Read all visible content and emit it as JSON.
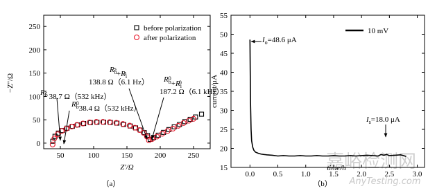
{
  "chart_data": [
    {
      "type": "scatter",
      "x_label": "Z'/Ω",
      "y_label": "−Z''/Ω",
      "caption": "（a）",
      "xlim": [
        25,
        275
      ],
      "ylim": [
        -12,
        274
      ],
      "xticks": [
        50,
        100,
        150,
        200,
        250
      ],
      "yticks": [
        0,
        50,
        100,
        150,
        200,
        250
      ],
      "legend": "upper right",
      "series": [
        {
          "name": "before polarization",
          "color": "#000000",
          "marker": "square",
          "x": [
            38.7,
            42,
            47,
            53,
            60,
            68,
            76,
            85,
            95,
            105,
            115,
            125,
            135,
            145,
            155,
            163,
            170,
            176,
            181,
            185,
            190,
            197,
            205,
            213,
            221,
            229,
            237,
            245,
            253,
            262
          ],
          "values": [
            4,
            14.6,
            21.5,
            27,
            32,
            36,
            39,
            42,
            44,
            44.8,
            45,
            44.3,
            42.8,
            40,
            36.6,
            32.6,
            28,
            22.6,
            16.3,
            8,
            12,
            17,
            23,
            29,
            35,
            40,
            46,
            51,
            56,
            62
          ]
        },
        {
          "name": "after polarization",
          "color": "#e8192c",
          "marker": "circle",
          "x": [
            38.4,
            41,
            46,
            52,
            59,
            67,
            75,
            84,
            94,
            104,
            114,
            124,
            134,
            144,
            154,
            162,
            169,
            175,
            180,
            183,
            188,
            195,
            203,
            211,
            219,
            227,
            235,
            243,
            250
          ],
          "values": [
            -3,
            10,
            19,
            26,
            31,
            35.5,
            39,
            42,
            44.5,
            45.5,
            45.5,
            45,
            43.5,
            41,
            37.5,
            33,
            28,
            22,
            14,
            6,
            9,
            14,
            20,
            26,
            31,
            37,
            43,
            48,
            52
          ]
        }
      ],
      "annotations": [
        {
          "lines": [
            [
              {
                "base": "R",
                "sub": "b",
                "sup": "s"
              },
              {
                "text": " 38.7 Ω（532 kHz）"
              }
            ]
          ]
        },
        {
          "lines": [
            [
              {
                "base": "R",
                "sub": "b",
                "sup": "0"
              },
              {
                "text": "38.4 Ω（532 kHz）"
              }
            ]
          ]
        },
        {
          "lines": [
            [
              {
                "base": "R",
                "sub": "b",
                "sup": "s"
              },
              {
                "text": "+"
              },
              {
                "base": "R",
                "sub": "i",
                "sup": "s"
              }
            ],
            [
              {
                "text": "138.8 Ω（6.1 Hz）"
              }
            ]
          ]
        },
        {
          "lines": [
            [
              {
                "base": "R",
                "sub": "b",
                "sup": "0"
              },
              {
                "text": "+"
              },
              {
                "base": "R",
                "sub": "i",
                "sup": "0"
              }
            ],
            [
              {
                "text": "187.2 Ω（6.1 kHz）"
              }
            ]
          ]
        }
      ]
    },
    {
      "type": "line",
      "x_label": "time/h",
      "y_label": "current/μA",
      "caption": "（b）",
      "xlim": [
        -0.34,
        3.13
      ],
      "ylim": [
        15,
        55
      ],
      "xticks": [
        {
          "value": 0,
          "label": "0.0"
        },
        0.5,
        {
          "value": 1,
          "label": "1.0"
        },
        1.5,
        {
          "value": 2,
          "label": "2.0"
        },
        2.5,
        {
          "value": 3,
          "label": "3.0"
        }
      ],
      "yticks": [
        15,
        20,
        25,
        30,
        35,
        40,
        45,
        50,
        55
      ],
      "legend": "upper right",
      "x": [
        0,
        0.005,
        0.01,
        0.02,
        0.03,
        0.05,
        0.07,
        0.1,
        0.15,
        0.2,
        0.3,
        0.4,
        0.5,
        0.6,
        0.7,
        0.8,
        0.9,
        1.0,
        1.1,
        1.2,
        1.3,
        1.4,
        1.5,
        1.6,
        1.7,
        1.8,
        1.9,
        2.0,
        2.1,
        2.2,
        2.3,
        2.35,
        2.4,
        2.45,
        2.5,
        2.6,
        2.7,
        2.8
      ],
      "series": [
        {
          "name": "10 mV",
          "color": "#000000",
          "values": [
            48.6,
            40,
            32,
            25,
            22,
            20.3,
            19.5,
            19.0,
            18.7,
            18.5,
            18.3,
            18.2,
            18.0,
            18.1,
            18.0,
            18.0,
            18.1,
            18.0,
            18.0,
            18.1,
            18.0,
            18.0,
            18.1,
            18.0,
            18.0,
            18.1,
            18.0,
            18.1,
            18.2,
            18.1,
            18.0,
            18.4,
            18.2,
            18.4,
            18.1,
            18.2,
            18.3,
            17.9
          ]
        }
      ],
      "annotations": [
        {
          "lines": [
            [
              {
                "base": "I",
                "sub": "o"
              },
              {
                "text": "=48.6 μA"
              }
            ]
          ]
        },
        {
          "lines": [
            [
              {
                "base": "I",
                "sub": "s"
              },
              {
                "text": "=18.0 μA"
              }
            ]
          ]
        }
      ]
    }
  ],
  "watermark": {
    "text": "嘉峪检测网",
    "url": "AnyTesting.com"
  }
}
